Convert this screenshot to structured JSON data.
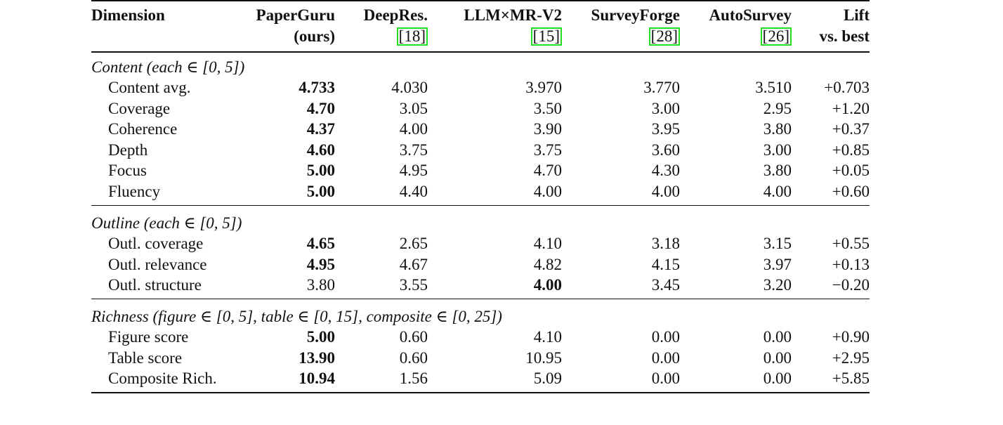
{
  "header": {
    "dimension": "Dimension",
    "cols": [
      {
        "l1": "PaperGuru",
        "l2": "(ours)",
        "ref": ""
      },
      {
        "l1": "DeepRes.",
        "l2": "",
        "ref": "[18]"
      },
      {
        "l1": "LLM×MR-V2",
        "l2": "",
        "ref": "[15]"
      },
      {
        "l1": "SurveyForge",
        "l2": "",
        "ref": "[28]"
      },
      {
        "l1": "AutoSurvey",
        "l2": "",
        "ref": "[26]"
      },
      {
        "l1": "Lift",
        "l2": "vs. best",
        "ref": ""
      }
    ]
  },
  "sections": [
    {
      "title": "Content (each ∈ [0, 5])",
      "rows": [
        {
          "name": "Content avg.",
          "vals": [
            "4.733",
            "4.030",
            "3.970",
            "3.770",
            "3.510",
            "+0.703"
          ],
          "bold": [
            0
          ]
        },
        {
          "name": "Coverage",
          "vals": [
            "4.70",
            "3.05",
            "3.50",
            "3.00",
            "2.95",
            "+1.20"
          ],
          "bold": [
            0
          ]
        },
        {
          "name": "Coherence",
          "vals": [
            "4.37",
            "4.00",
            "3.90",
            "3.95",
            "3.80",
            "+0.37"
          ],
          "bold": [
            0
          ]
        },
        {
          "name": "Depth",
          "vals": [
            "4.60",
            "3.75",
            "3.75",
            "3.60",
            "3.00",
            "+0.85"
          ],
          "bold": [
            0
          ]
        },
        {
          "name": "Focus",
          "vals": [
            "5.00",
            "4.95",
            "4.70",
            "4.30",
            "3.80",
            "+0.05"
          ],
          "bold": [
            0
          ]
        },
        {
          "name": "Fluency",
          "vals": [
            "5.00",
            "4.40",
            "4.00",
            "4.00",
            "4.00",
            "+0.60"
          ],
          "bold": [
            0
          ]
        }
      ]
    },
    {
      "title": "Outline (each ∈ [0, 5])",
      "rows": [
        {
          "name": "Outl. coverage",
          "vals": [
            "4.65",
            "2.65",
            "4.10",
            "3.18",
            "3.15",
            "+0.55"
          ],
          "bold": [
            0
          ]
        },
        {
          "name": "Outl. relevance",
          "vals": [
            "4.95",
            "4.67",
            "4.82",
            "4.15",
            "3.97",
            "+0.13"
          ],
          "bold": [
            0
          ]
        },
        {
          "name": "Outl. structure",
          "vals": [
            "3.80",
            "3.55",
            "4.00",
            "3.45",
            "3.20",
            "−0.20"
          ],
          "bold": [
            2
          ]
        }
      ]
    },
    {
      "title": "Richness (figure ∈ [0, 5], table ∈ [0, 15], composite ∈ [0, 25])",
      "rows": [
        {
          "name": "Figure score",
          "vals": [
            "5.00",
            "0.60",
            "4.10",
            "0.00",
            "0.00",
            "+0.90"
          ],
          "bold": [
            0
          ]
        },
        {
          "name": "Table score",
          "vals": [
            "13.90",
            "0.60",
            "10.95",
            "0.00",
            "0.00",
            "+2.95"
          ],
          "bold": [
            0
          ]
        },
        {
          "name": "Composite Rich.",
          "vals": [
            "10.94",
            "1.56",
            "5.09",
            "0.00",
            "0.00",
            "+5.85"
          ],
          "bold": [
            0
          ]
        }
      ]
    }
  ]
}
